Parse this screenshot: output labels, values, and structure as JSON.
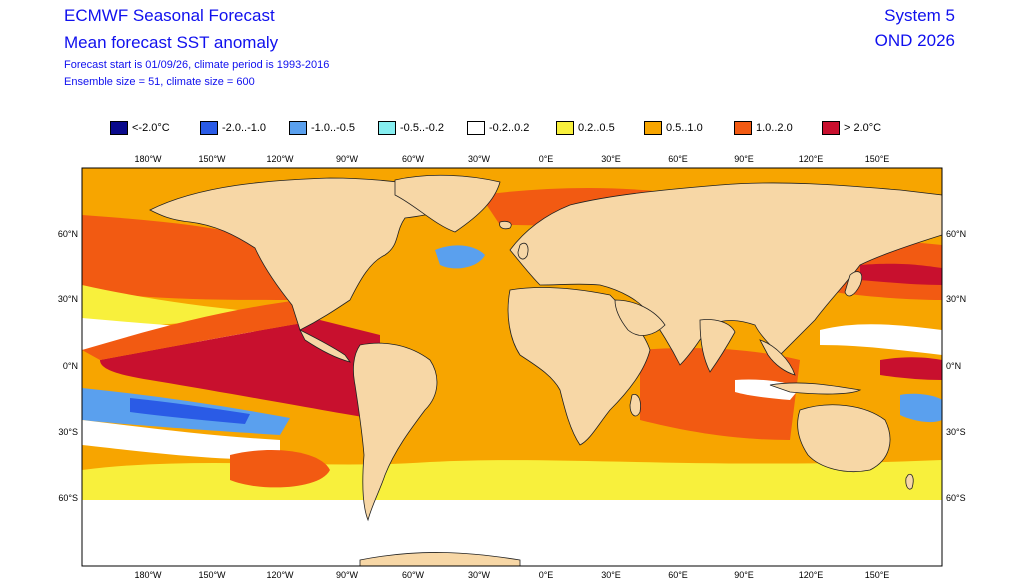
{
  "header": {
    "title_line1": "ECMWF Seasonal Forecast",
    "title_line2": "Mean forecast SST anomaly",
    "info_line1": "Forecast start is 01/09/26, climate period is 1993-2016",
    "info_line2": "Ensemble size = 51, climate size = 600",
    "system": "System 5",
    "period": "OND 2026"
  },
  "legend": [
    {
      "label": "<-2.0°C",
      "color": "#0a0a8c"
    },
    {
      "label": "-2.0..-1.0",
      "color": "#2a5be6"
    },
    {
      "label": "-1.0..-0.5",
      "color": "#5aa0ee"
    },
    {
      "label": "-0.5..-0.2",
      "color": "#86eef0"
    },
    {
      "label": "-0.2..0.2",
      "color": "#ffffff"
    },
    {
      "label": "0.2..0.5",
      "color": "#f8f03c"
    },
    {
      "label": "0.5..1.0",
      "color": "#f7a500"
    },
    {
      "label": "1.0..2.0",
      "color": "#f25a12"
    },
    {
      "label": "> 2.0°C",
      "color": "#c8102e"
    }
  ],
  "axes": {
    "lon_labels": [
      "180°W",
      "150°W",
      "120°W",
      "90°W",
      "60°W",
      "30°W",
      "0°E",
      "30°E",
      "60°E",
      "90°E",
      "120°E",
      "150°E"
    ],
    "lat_labels": [
      "60°N",
      "30°N",
      "0°N",
      "30°S",
      "60°S"
    ]
  },
  "colors": {
    "land": "#f7d7a6",
    "coast": "#222222"
  }
}
